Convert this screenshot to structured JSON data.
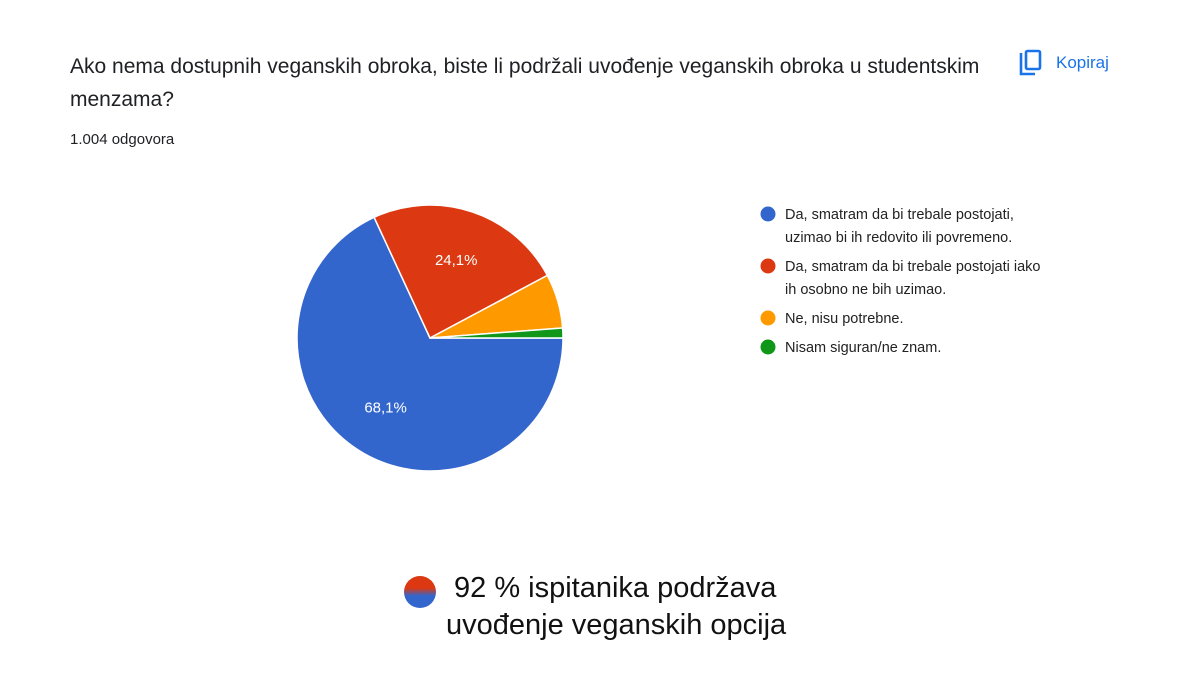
{
  "header": {
    "question": "Ako nema dostupnih veganskih obroka, biste li podržali uvođenje veganskih obroka u studentskim menzama?",
    "response_count": "1.004 odgovora",
    "copy_label": "Kopiraj",
    "copy_icon": "copy-icon",
    "accent_color": "#1a73e8"
  },
  "chart_data": {
    "type": "pie",
    "slices": [
      {
        "label": "Da, smatram da bi trebale postojati, uzimao bi ih redovito ili povremeno.",
        "value": 68.1,
        "display": "68,1%",
        "color": "#3366cc",
        "legend_lines": [
          "Da, smatram da bi trebale postojati,",
          "uzimao bi ih redovito ili povremeno."
        ]
      },
      {
        "label": "Da, smatram da bi trebale postojati iako ih osobno ne bih uzimao.",
        "value": 24.1,
        "display": "24,1%",
        "color": "#dc3912",
        "legend_lines": [
          "Da, smatram da bi trebale postojati iako",
          "ih osobno ne bih uzimao."
        ]
      },
      {
        "label": "Ne, nisu potrebne.",
        "value": 6.6,
        "display": "",
        "color": "#ff9900",
        "legend_lines": [
          "Ne, nisu potrebne."
        ]
      },
      {
        "label": "Nisam siguran/ne znam.",
        "value": 1.2,
        "display": "",
        "color": "#109618",
        "legend_lines": [
          "Nisam siguran/ne znam."
        ]
      }
    ],
    "legend_position": "right"
  },
  "summary": {
    "line1": "92 %  ispitanika podržava",
    "line2": "uvođenje veganskih opcija"
  }
}
